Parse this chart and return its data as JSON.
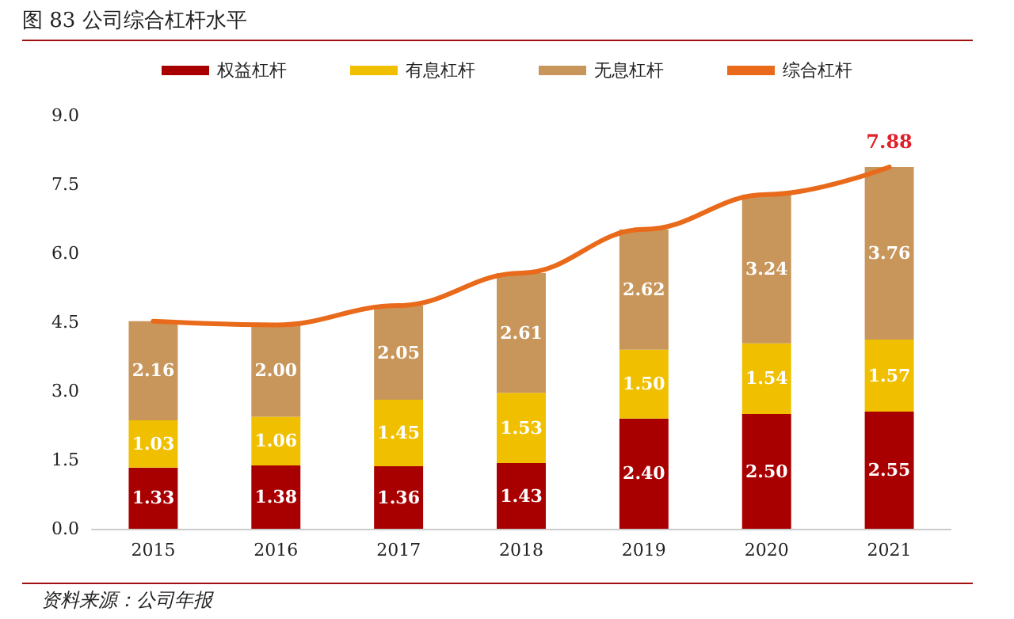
{
  "chart_data": {
    "type": "bar",
    "title": "图 83 公司综合杠杆水平",
    "stacked": true,
    "categories": [
      "2015",
      "2016",
      "2017",
      "2018",
      "2019",
      "2020",
      "2021"
    ],
    "series": [
      {
        "name": "权益杠杆",
        "color": "#a80000",
        "values": [
          1.33,
          1.38,
          1.36,
          1.43,
          2.4,
          2.5,
          2.55
        ],
        "value_labels": [
          "1.33",
          "1.38",
          "1.36",
          "1.43",
          "2.40",
          "2.50",
          "2.55"
        ]
      },
      {
        "name": "有息杠杆",
        "color": "#f0c000",
        "values": [
          1.03,
          1.06,
          1.45,
          1.53,
          1.5,
          1.54,
          1.57
        ],
        "value_labels": [
          "1.03",
          "1.06",
          "1.45",
          "1.53",
          "1.50",
          "1.54",
          "1.57"
        ]
      },
      {
        "name": "无息杠杆",
        "color": "#c8965a",
        "values": [
          2.16,
          2.0,
          2.05,
          2.61,
          2.62,
          3.24,
          3.76
        ],
        "value_labels": [
          "2.16",
          "2.00",
          "2.05",
          "2.61",
          "2.62",
          "3.24",
          "3.76"
        ]
      },
      {
        "name": "综合杠杆",
        "type": "line",
        "color": "#e86a1a",
        "values": [
          4.52,
          4.44,
          4.86,
          5.57,
          6.52,
          7.28,
          7.88
        ],
        "value_labels": [
          null,
          null,
          null,
          null,
          null,
          null,
          "7.88"
        ]
      }
    ],
    "ylim": [
      0,
      9
    ],
    "yticks": [
      {
        "value": 0,
        "label": "0.0"
      },
      {
        "value": 1.5,
        "label": "1.5"
      },
      {
        "value": 3,
        "label": "3.0"
      },
      {
        "value": 4.5,
        "label": "4.5"
      },
      {
        "value": 6,
        "label": "6.0"
      },
      {
        "value": 7.5,
        "label": "7.5"
      },
      {
        "value": 9,
        "label": "9.0"
      }
    ],
    "grid": false,
    "legend": "top",
    "marker": "none",
    "line_style": "solid",
    "annotations": [
      "资料来源：公司年报"
    ]
  }
}
